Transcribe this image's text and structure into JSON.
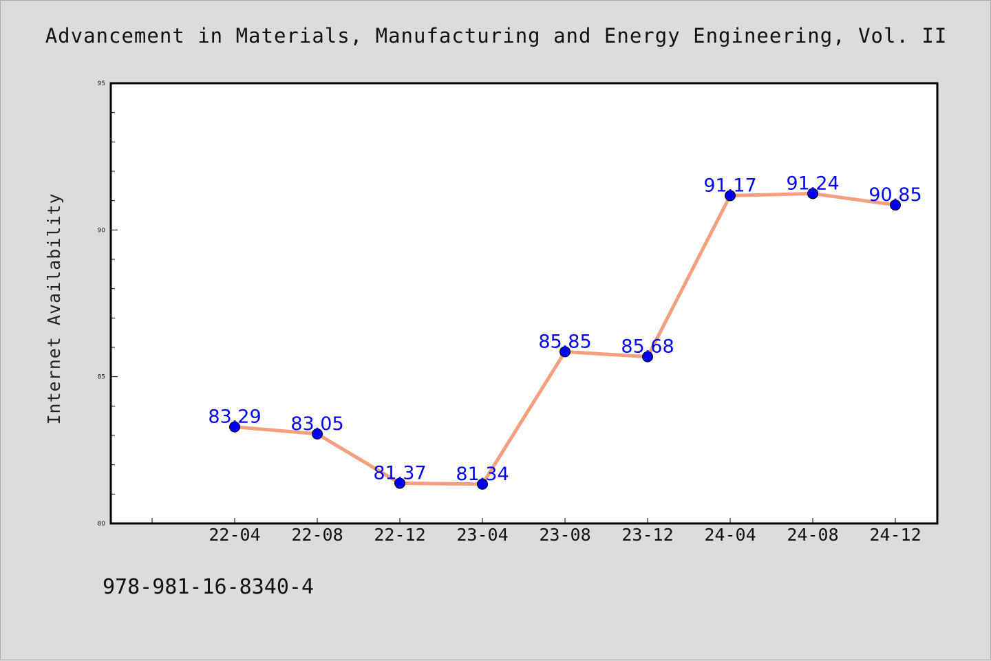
{
  "chart_data": {
    "type": "line",
    "title": "Advancement in Materials, Manufacturing and Energy Engineering, Vol. II",
    "xlabel": "",
    "ylabel": "Internet Availability",
    "ylim": [
      80,
      95
    ],
    "yticks": [
      80,
      85,
      90,
      95
    ],
    "categories": [
      "22-04",
      "22-08",
      "22-12",
      "23-04",
      "23-08",
      "23-12",
      "24-04",
      "24-08",
      "24-12"
    ],
    "series": [
      {
        "values": [
          83.29,
          83.05,
          81.37,
          81.34,
          85.85,
          85.68,
          91.17,
          91.24,
          90.85
        ],
        "labels": [
          "83.29",
          "83.05",
          "81.37",
          "81.34",
          "85.85",
          "85.68",
          "91.17",
          "91.24",
          "90.85"
        ]
      }
    ],
    "grid": false,
    "legend": "none",
    "colors": {
      "line": "#f4a07e",
      "marker": "#0000ee",
      "label": "#0000ff",
      "plot_bg": "#ffffff",
      "page_bg": "#dcdcdc"
    }
  },
  "footer": {
    "isbn": "978-981-16-8340-4"
  }
}
